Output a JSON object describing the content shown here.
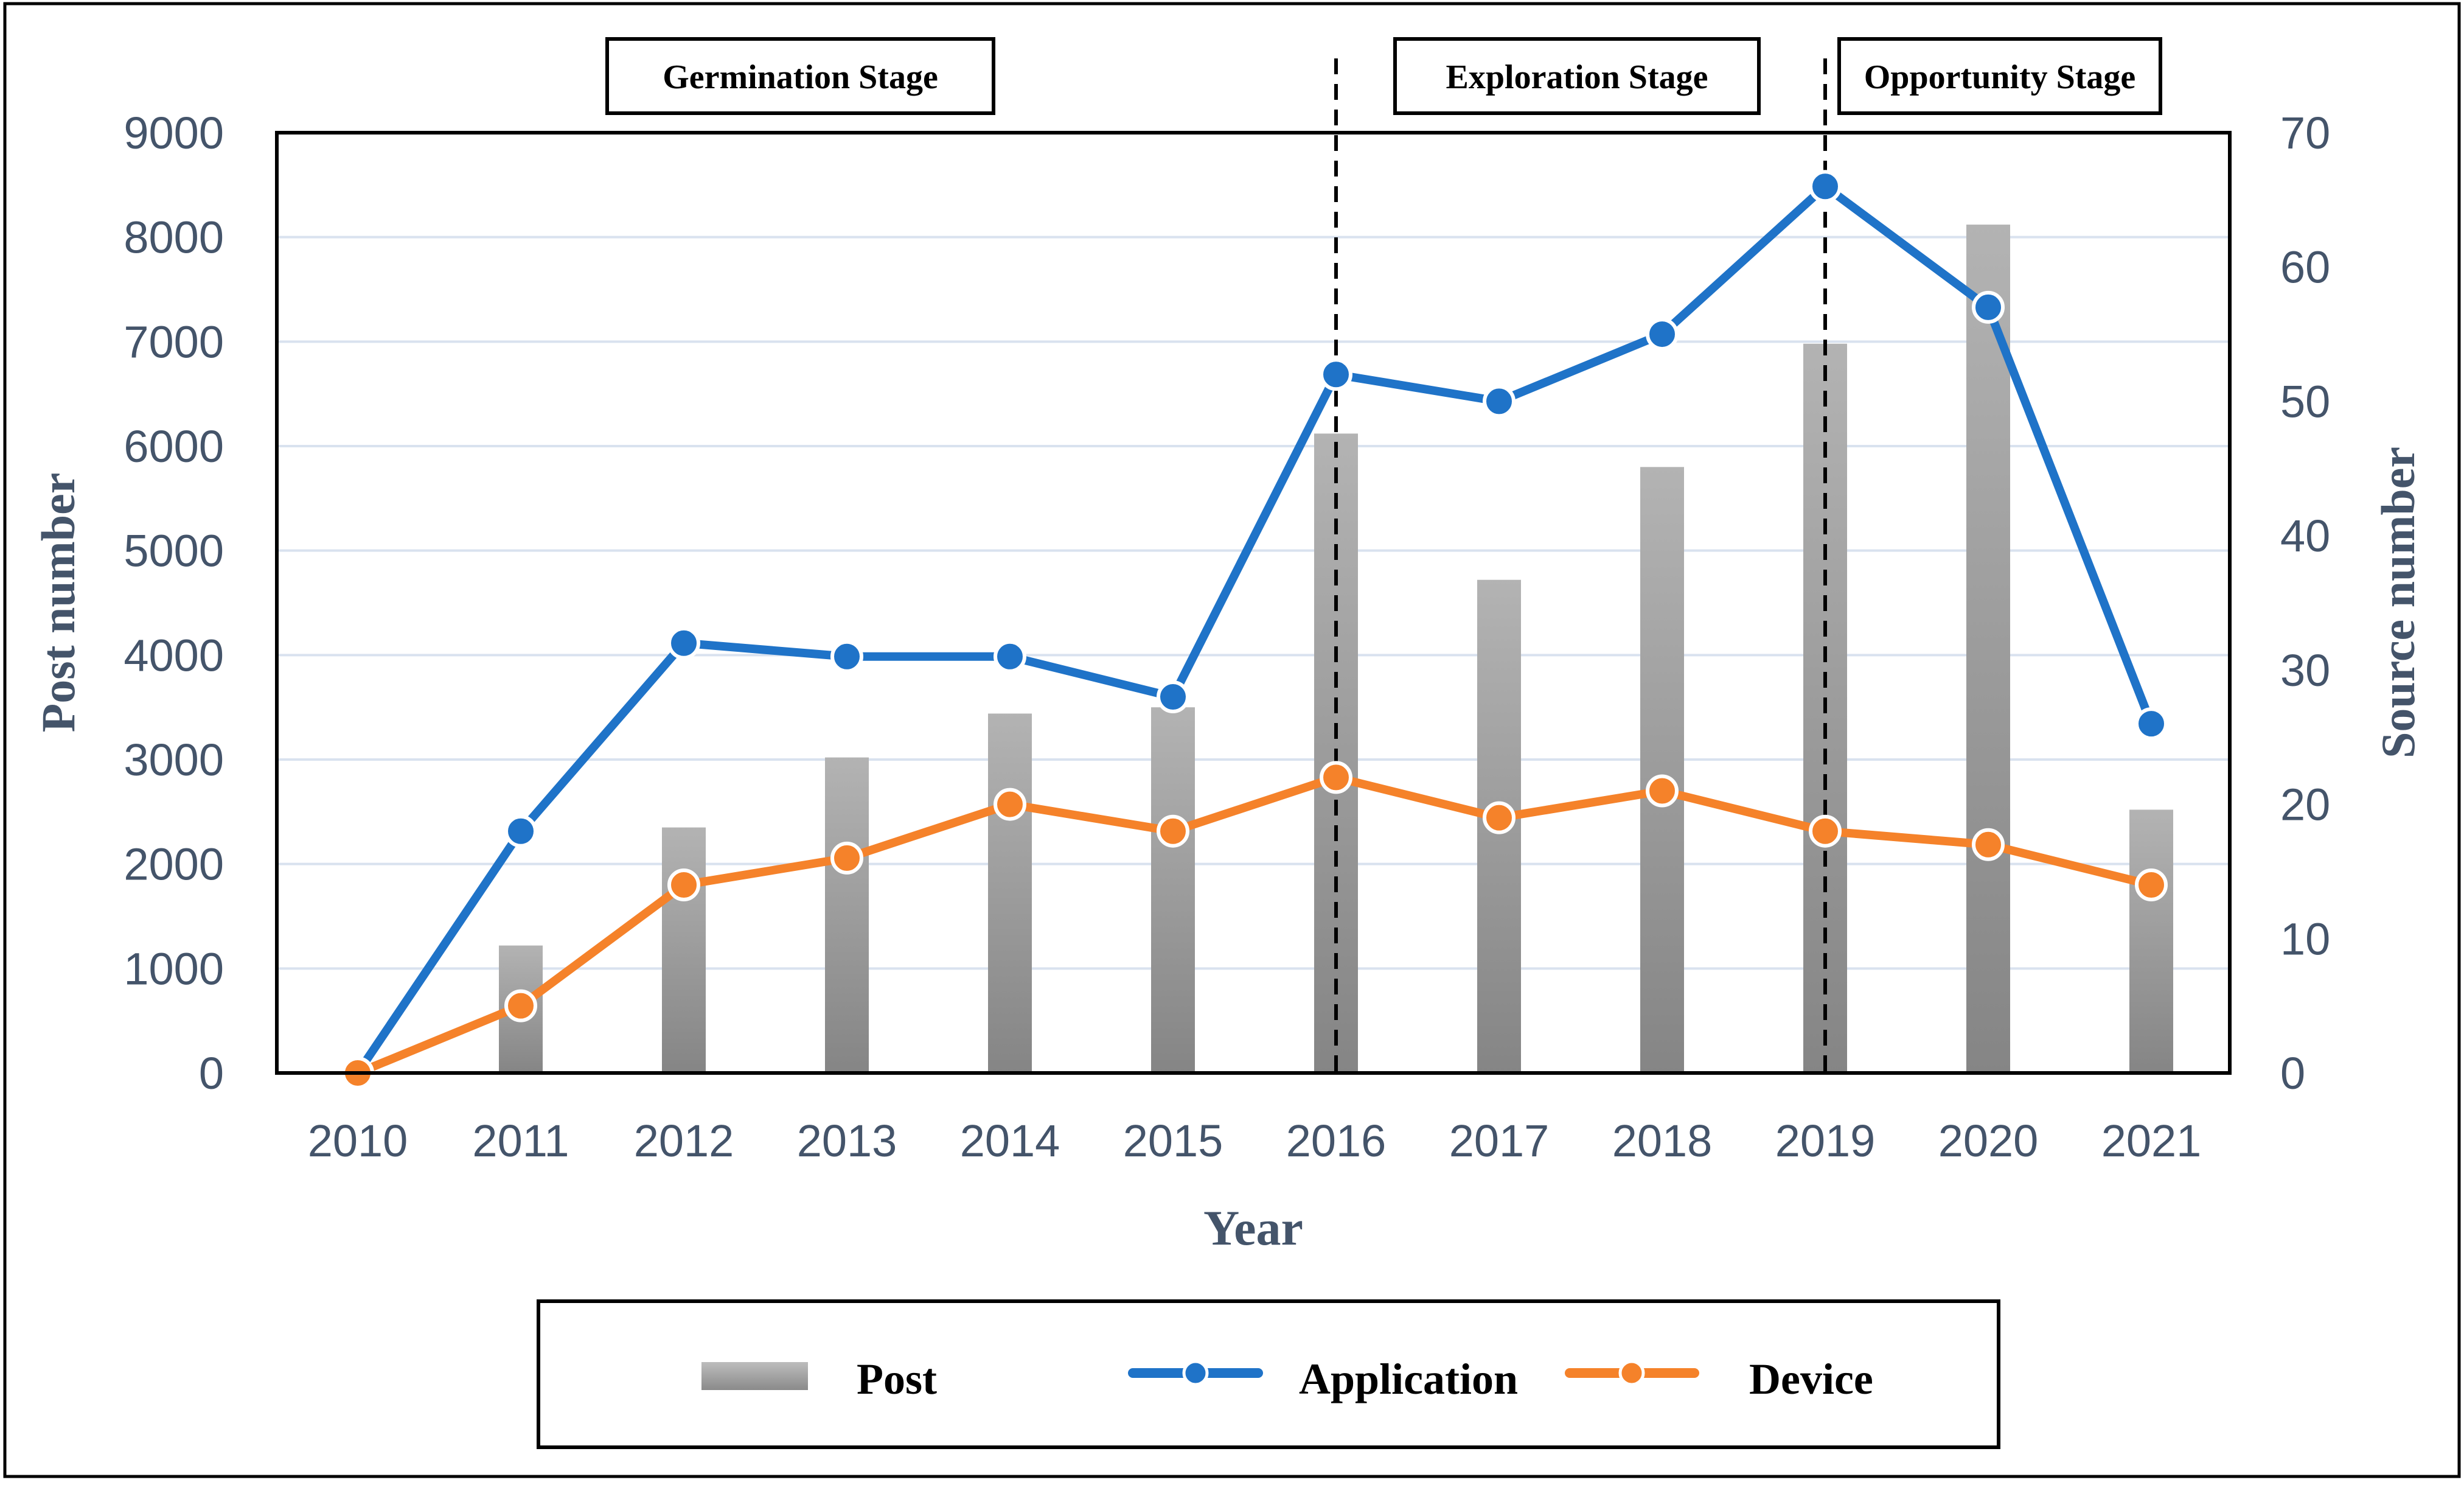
{
  "chart_data": {
    "type": "bar",
    "categories": [
      "2010",
      "2011",
      "2012",
      "2013",
      "2014",
      "2015",
      "2016",
      "2017",
      "2018",
      "2019",
      "2020",
      "2021"
    ],
    "xlabel": "Year",
    "ylabel": "Post number",
    "y2label": "Source number",
    "ylim": [
      0,
      9000
    ],
    "y2lim": [
      0,
      70
    ],
    "yticks": [
      "0",
      "1000",
      "2000",
      "3000",
      "4000",
      "5000",
      "6000",
      "7000",
      "8000",
      "9000"
    ],
    "y2ticks": [
      "0",
      "10",
      "20",
      "30",
      "40",
      "50",
      "60",
      "70"
    ],
    "grid": true,
    "legend_position": "bottom",
    "series": [
      {
        "name": "Post",
        "type": "bar",
        "axis": "left",
        "color": "#a6a6a6",
        "values": [
          0,
          1220,
          2350,
          3020,
          3440,
          3500,
          6120,
          4720,
          5800,
          6980,
          8120,
          2520
        ]
      },
      {
        "name": "Application",
        "type": "line",
        "axis": "right",
        "color": "#1f73c8",
        "values": [
          0,
          18,
          32,
          31,
          31,
          28,
          52,
          50,
          55,
          66,
          57,
          26
        ]
      },
      {
        "name": "Device",
        "type": "line",
        "axis": "right",
        "color": "#f5822a",
        "values": [
          0,
          5,
          14,
          16,
          20,
          18,
          22,
          19,
          21,
          18,
          17,
          14
        ]
      }
    ],
    "stages": [
      {
        "label": "Germination Stage",
        "start": "2010",
        "end": "2016"
      },
      {
        "label": "Exploration Stage",
        "start": "2016",
        "end": "2019"
      },
      {
        "label": "Opportunity Stage",
        "start": "2019",
        "end": "2021"
      }
    ],
    "stage_dividers": [
      "2016",
      "2019"
    ]
  },
  "legend": {
    "post": "Post",
    "application": "Application",
    "device": "Device"
  },
  "colors": {
    "axis_text": "#44546a",
    "grid": "#d9e2ef",
    "frame": "#000000"
  }
}
